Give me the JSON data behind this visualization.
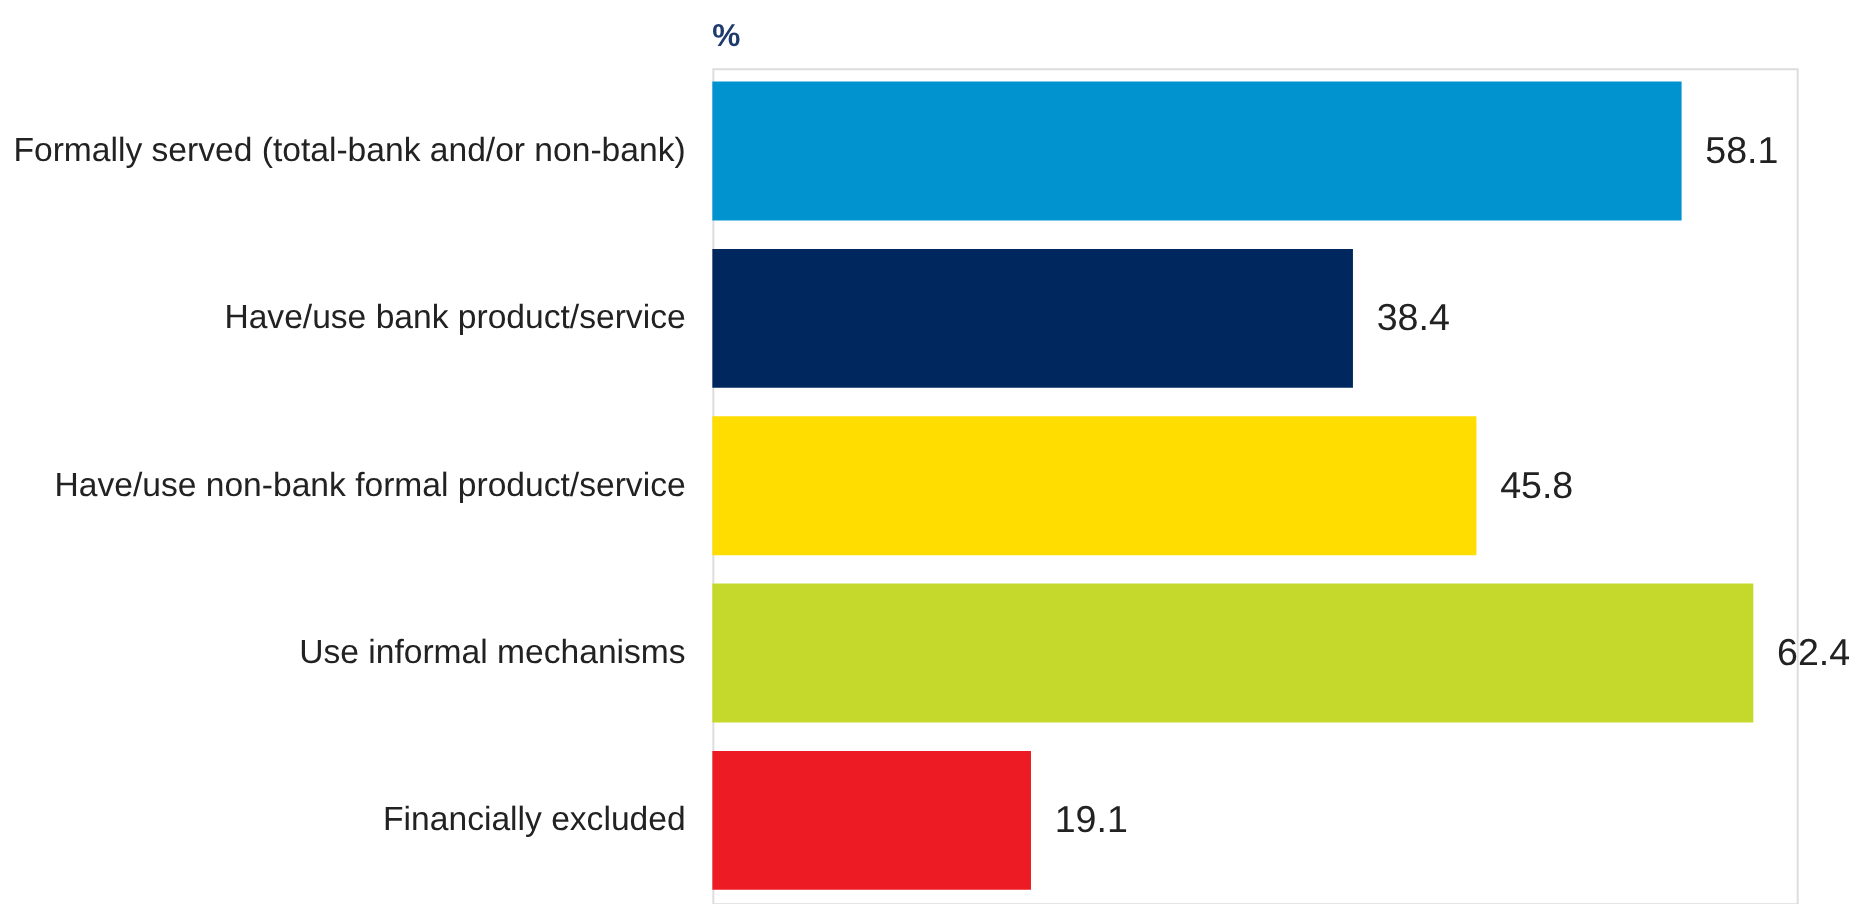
{
  "chart_data": {
    "type": "bar",
    "orientation": "horizontal",
    "title": "%",
    "categories": [
      "Formally served (total-bank and/or non-bank)",
      "Have/use bank product/service",
      "Have/use non-bank formal product/service",
      "Use informal mechanisms",
      "Financially excluded"
    ],
    "values": [
      58.1,
      38.4,
      45.8,
      62.4,
      19.1
    ],
    "colors": [
      "#0093d0",
      "#00285e",
      "#ffdd00",
      "#c5d92d",
      "#ed1c24"
    ],
    "data_labels": true,
    "grid": false
  }
}
